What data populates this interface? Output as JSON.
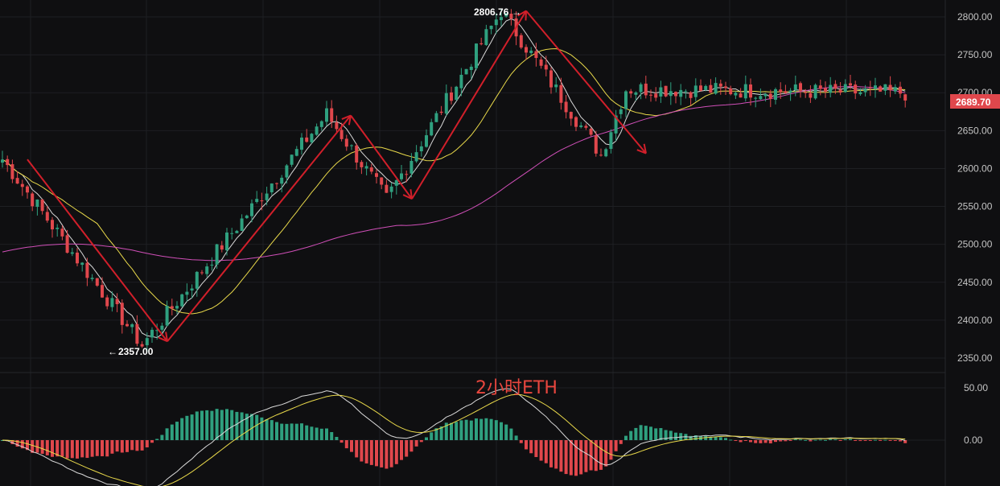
{
  "watermark": "2小时ETH",
  "colors": {
    "background": "#0f0f11",
    "grid": "#1e1f23",
    "up": "#2fa07f",
    "down": "#e0474c",
    "ma_fast": "#d9d9d9",
    "ma_mid": "#e8d84a",
    "ma_slow": "#d04fb8",
    "pattern": "#d11f2a",
    "price_tag": "#e0474c"
  },
  "chart_data": [
    {
      "type": "candlestick",
      "title": "",
      "timeframe": "2h",
      "y_axis_side": "right",
      "ylim": [
        2325,
        2815
      ],
      "ticks": [
        "2800.00",
        "2750.00",
        "2700.00",
        "2650.00",
        "2600.00",
        "2550.00",
        "2500.00",
        "2450.00",
        "2400.00",
        "2350.00"
      ],
      "tick_values": [
        2800,
        2750,
        2700,
        2650,
        2600,
        2550,
        2500,
        2450,
        2400,
        2350
      ],
      "last_price": 2689.7,
      "last_price_label": "2689.70",
      "high_annotation": {
        "value": 2806.76,
        "label": "2806.76"
      },
      "low_annotation": {
        "value": 2357.0,
        "label": "2357.00"
      },
      "pivots": [
        {
          "x": 0,
          "y": 2612
        },
        {
          "x": 28,
          "y": 2367
        },
        {
          "x": 65,
          "y": 2672
        },
        {
          "x": 77,
          "y": 2560
        },
        {
          "x": 100,
          "y": 2808
        },
        {
          "x": 120,
          "y": 2618
        },
        {
          "x": 125,
          "y": 2705
        },
        {
          "x": 181,
          "y": 2700
        }
      ],
      "moving_averages": [
        {
          "name": "fast",
          "period": 5
        },
        {
          "name": "mid",
          "period": 20
        },
        {
          "name": "slow",
          "period": 80,
          "start": 2490
        }
      ],
      "grid": true,
      "candle_count": 182
    },
    {
      "type": "macd",
      "ylim": [
        -75,
        65
      ],
      "ticks": [
        "50.00",
        "0.00"
      ],
      "tick_values": [
        50,
        0
      ],
      "grid": true
    }
  ]
}
